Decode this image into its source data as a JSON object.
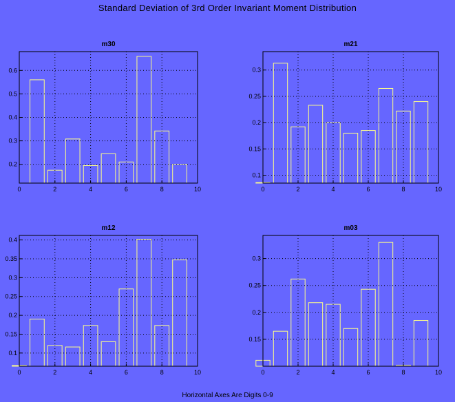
{
  "title": "Standard Deviation of 3rd Order Invariant Moment Distribution",
  "footer": "Horizontal Axes Are Digits 0-9",
  "chart_data": [
    {
      "type": "bar",
      "title": "m30",
      "categories": [
        0,
        1,
        2,
        3,
        4,
        5,
        6,
        7,
        8,
        9
      ],
      "values": [
        0.12,
        0.56,
        0.175,
        0.308,
        0.195,
        0.245,
        0.21,
        0.66,
        0.342,
        0.2
      ],
      "xlim": [
        0,
        10
      ],
      "ylim": [
        0.12,
        0.68
      ],
      "xticks": [
        0,
        2,
        4,
        6,
        8,
        10
      ],
      "yticks": [
        0.2,
        0.3,
        0.4,
        0.5,
        0.6
      ],
      "ytick_labels": [
        "0.2",
        "0.3",
        "0.4",
        "0.5",
        "0.6"
      ],
      "grid": true
    },
    {
      "type": "bar",
      "title": "m21",
      "categories": [
        0,
        1,
        2,
        3,
        4,
        5,
        6,
        7,
        8,
        9
      ],
      "values": [
        0.086,
        0.313,
        0.192,
        0.233,
        0.2,
        0.18,
        0.185,
        0.265,
        0.222,
        0.24
      ],
      "xlim": [
        0,
        10
      ],
      "ylim": [
        0.085,
        0.335
      ],
      "xticks": [
        0,
        2,
        4,
        6,
        8,
        10
      ],
      "yticks": [
        0.1,
        0.15,
        0.2,
        0.25,
        0.3
      ],
      "ytick_labels": [
        "0.1",
        "0.15",
        "0.2",
        "0.25",
        "0.3"
      ],
      "grid": true
    },
    {
      "type": "bar",
      "title": "m12",
      "categories": [
        0,
        1,
        2,
        3,
        4,
        5,
        6,
        7,
        8,
        9
      ],
      "values": [
        0.067,
        0.19,
        0.12,
        0.116,
        0.173,
        0.13,
        0.27,
        0.402,
        0.173,
        0.347
      ],
      "xlim": [
        0,
        10
      ],
      "ylim": [
        0.065,
        0.412
      ],
      "xticks": [
        0,
        2,
        4,
        6,
        8,
        10
      ],
      "yticks": [
        0.1,
        0.15,
        0.2,
        0.25,
        0.3,
        0.35,
        0.4
      ],
      "ytick_labels": [
        "0.1",
        "0.15",
        "0.2",
        "0.25",
        "0.3",
        "0.35",
        "0.4"
      ],
      "grid": true
    },
    {
      "type": "bar",
      "title": "m03",
      "categories": [
        0,
        1,
        2,
        3,
        4,
        5,
        6,
        7,
        8,
        9
      ],
      "values": [
        0.111,
        0.165,
        0.262,
        0.218,
        0.215,
        0.17,
        0.243,
        0.33,
        0.102,
        0.185
      ],
      "xlim": [
        0,
        10
      ],
      "ylim": [
        0.1,
        0.343
      ],
      "xticks": [
        0,
        2,
        4,
        6,
        8,
        10
      ],
      "yticks": [
        0.15,
        0.2,
        0.25,
        0.3
      ],
      "ytick_labels": [
        "0.15",
        "0.2",
        "0.25",
        "0.3"
      ],
      "grid": true
    }
  ],
  "colors": {
    "background": "#6666ff",
    "bar_outline": "#ffff88",
    "axes": "#000000"
  }
}
